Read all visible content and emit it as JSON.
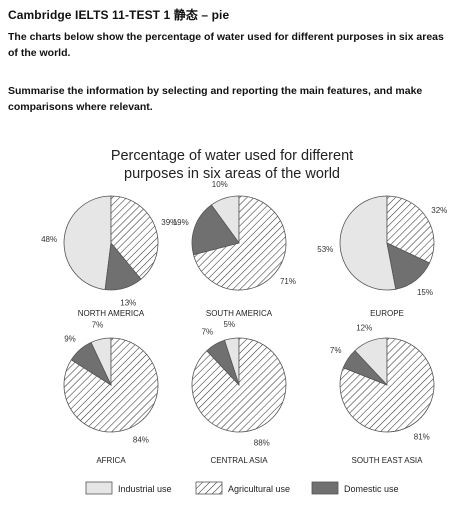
{
  "page": {
    "heading": "Cambridge IELTS 11-TEST 1    静态  – pie",
    "task_intro": "The charts below show the percentage of water used for different purposes in six areas of the world.",
    "task_instruction": "Summarise the information by selecting and reporting the main features, and make comparisons where relevant."
  },
  "colors": {
    "industrial": "#e6e6e6",
    "agricultural_hatch": "#333333",
    "domestic": "#707070",
    "outline": "#555555"
  },
  "chart_data": {
    "type": "pie",
    "title_lines": [
      "Percentage of water used for different",
      "purposes in six areas of the world"
    ],
    "categories": [
      "Industrial use",
      "Agricultural use",
      "Domestic use"
    ],
    "value_unit": "%",
    "grid": false,
    "legend_position": "bottom",
    "pies": [
      {
        "region": "NORTH AMERICA",
        "values": [
          48,
          39,
          13
        ]
      },
      {
        "region": "SOUTH AMERICA",
        "values": [
          10,
          71,
          19
        ]
      },
      {
        "region": "EUROPE",
        "values": [
          53,
          32,
          15
        ]
      },
      {
        "region": "AFRICA",
        "values": [
          7,
          84,
          9
        ]
      },
      {
        "region": "CENTRAL ASIA",
        "values": [
          5,
          88,
          7
        ]
      },
      {
        "region": "SOUTH EAST ASIA",
        "values": [
          12,
          81,
          7
        ]
      }
    ]
  }
}
